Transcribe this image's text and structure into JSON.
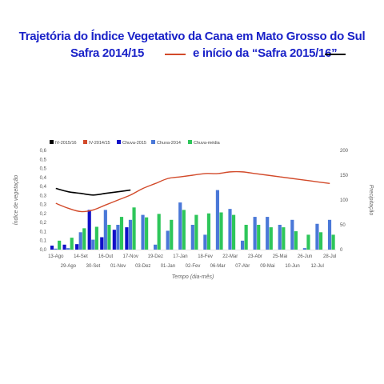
{
  "title": {
    "line1": "Trajetória do Índice Vegetativo da Cana em Mato Grosso do Sul",
    "line2a": "Safra 2014/15",
    "line2b": "e início da “Safra 2015/16”",
    "color_2014": "#d24a2a",
    "color_2015": "#000000"
  },
  "chart_data": {
    "type": "bar",
    "xlabel": "Tempo (dia-mês)",
    "ylabel": "Índice de vegetação",
    "y2label": "Precipitação",
    "ylim": [
      0,
      0.6
    ],
    "y2lim": [
      0,
      200
    ],
    "yticks": [
      "0,0",
      "0,1",
      "0,1",
      "0,2",
      "0,2",
      "0,3",
      "0,3",
      "0,4",
      "0,4",
      "0,5",
      "0,5",
      "0,6"
    ],
    "y2ticks": [
      "0",
      "50",
      "100",
      "150",
      "200"
    ],
    "x_labels_top": [
      "13-Ago",
      "14-Set",
      "16-Out",
      "17-Nov",
      "19-Dez",
      "17-Jan",
      "18-Fev",
      "22-Mar",
      "23-Abr",
      "25-Mai",
      "26-Jun",
      "28-Jul"
    ],
    "x_labels_bottom": [
      "29-Ago",
      "30-Set",
      "01-Nov",
      "03-Dez",
      "01-Jan",
      "02-Fev",
      "06-Mar",
      "07-Abr",
      "09-Mai",
      "10-Jun",
      "12-Jul"
    ],
    "categories": [
      "13-Ago",
      "29-Ago",
      "14-Set",
      "30-Set",
      "16-Out",
      "01-Nov",
      "17-Nov",
      "03-Dez",
      "19-Dez",
      "01-Jan",
      "17-Jan",
      "02-Fev",
      "18-Fev",
      "06-Mar",
      "22-Mar",
      "07-Abr",
      "23-Abr",
      "09-Mai",
      "25-Mai",
      "10-Jun",
      "26-Jun",
      "12-Jul",
      "28-Jul"
    ],
    "legend": [
      {
        "name": "IV-2015/16",
        "color": "#000000"
      },
      {
        "name": "IV-2014/15",
        "color": "#d24a2a"
      },
      {
        "name": "Chuva-2015",
        "color": "#1010c8"
      },
      {
        "name": "Chuva-2014",
        "color": "#4a78d8"
      },
      {
        "name": "Chuva-média",
        "color": "#2ec65a"
      }
    ],
    "legend_position": "top-left",
    "series_lines": [
      {
        "name": "IV-2014/15",
        "color": "#d24a2a",
        "axis": "left",
        "values": [
          0.28,
          0.25,
          0.23,
          0.24,
          0.27,
          0.3,
          0.33,
          0.37,
          0.4,
          0.43,
          0.44,
          0.45,
          0.46,
          0.46,
          0.47,
          0.47,
          0.46,
          0.45,
          0.44,
          0.43,
          0.42,
          0.41,
          0.4
        ]
      },
      {
        "name": "IV-2015/16",
        "color": "#000000",
        "axis": "left",
        "values": [
          0.37,
          0.35,
          0.34,
          0.33,
          0.34,
          0.35,
          0.36
        ]
      }
    ],
    "series_bars": [
      {
        "name": "Chuva-2015",
        "color": "#1010c8",
        "axis": "right",
        "values": [
          8,
          10,
          11,
          80,
          25,
          40,
          45
        ]
      },
      {
        "name": "Chuva-2014",
        "color": "#4a78d8",
        "axis": "right",
        "values": [
          2,
          3,
          35,
          20,
          80,
          50,
          60,
          70,
          10,
          38,
          95,
          50,
          30,
          120,
          82,
          18,
          66,
          66,
          50,
          60,
          3,
          52,
          60
        ]
      },
      {
        "name": "Chuva-média",
        "color": "#2ec65a",
        "axis": "right",
        "values": [
          18,
          24,
          43,
          46,
          50,
          66,
          85,
          65,
          72,
          60,
          80,
          70,
          73,
          75,
          70,
          50,
          50,
          45,
          45,
          37,
          30,
          35,
          30
        ]
      }
    ]
  }
}
